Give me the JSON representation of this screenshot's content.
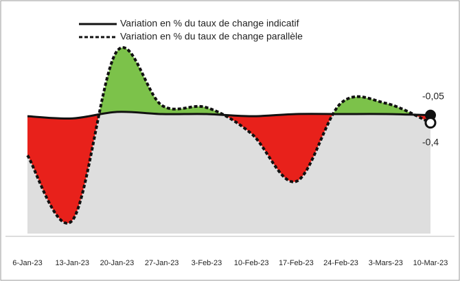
{
  "chart_data": {
    "type": "line",
    "categories": [
      "6-Jan-23",
      "13-Jan-23",
      "20-Jan-23",
      "27-Jan-23",
      "3-Feb-23",
      "10-Feb-23",
      "17-Feb-23",
      "24-Feb-23",
      "3-Mars-23",
      "10-Mar-23"
    ],
    "series": [
      {
        "name": "Variation en % du taux de change indicatif",
        "color": "#111111",
        "style": "solid",
        "values": [
          -0.1,
          -0.2,
          0.1,
          0,
          0,
          -0.1,
          0,
          0,
          0,
          -0.05
        ],
        "value_labels": [
          null,
          null,
          null,
          null,
          null,
          null,
          null,
          null,
          null,
          "-0,05"
        ]
      },
      {
        "name": "Variation en % du taux de change parallèle",
        "color": "#111111",
        "style": "dotted",
        "values": [
          -1.9,
          -4.9,
          2.9,
          0.4,
          0.3,
          -0.9,
          -3.1,
          0.5,
          0.5,
          -0.4
        ],
        "value_labels": [
          null,
          null,
          null,
          null,
          null,
          null,
          null,
          null,
          null,
          "-0,4"
        ]
      }
    ],
    "ylim": [
      -5.5,
      4.3
    ],
    "fill_above": "#7cc24a",
    "fill_below": "#e8211b",
    "background_fill": "#dedede"
  }
}
